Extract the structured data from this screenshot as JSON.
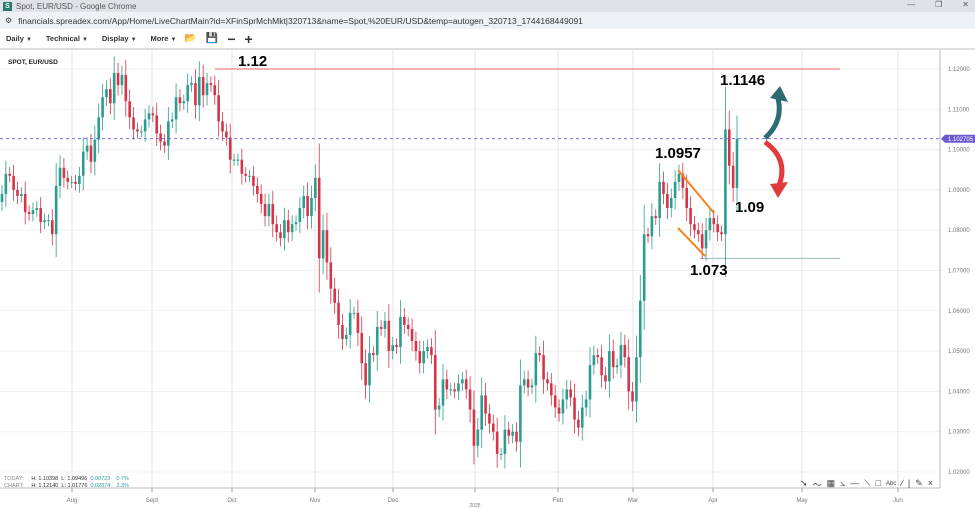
{
  "window": {
    "title": "Spot, EUR/USD - Google Chrome",
    "url": "financials.spreadex.com/App/Home/LiveChartMain?id=XFinSprMchMkt|320713&name=Spot,%20EUR/USD&temp=autogen_320713_1744168449091"
  },
  "toolbar": {
    "daily": "Daily",
    "technical": "Technical",
    "display": "Display",
    "more": "More"
  },
  "symbol": "SPOT, EUR/USD",
  "stats": {
    "today": {
      "label": "TODAY:",
      "h": "H: 1.10398",
      "l": "L: 1.09496",
      "chg": "0.00723",
      "pct": "0.7%"
    },
    "chart": {
      "label": "CHART:",
      "h": "H: 1.12140",
      "l": "L: 1.01776",
      "chg": "0.02374",
      "pct": "2.3%"
    }
  },
  "annotations": {
    "a112": "1.12",
    "a11146": "1.1146",
    "a10957": "1.0957",
    "a109": "1.09",
    "a1073": "1.073"
  },
  "colors": {
    "up": "#2a9d8f",
    "down": "#d63447",
    "price_line": "#6a5acd",
    "resistance": "#f08080",
    "support": "#9fb8b8",
    "channel": "#f5841f",
    "arrow_up": "#2f6b74",
    "arrow_down": "#e23b3b"
  },
  "chart_data": {
    "type": "candlestick",
    "instrument": "SPOT, EUR/USD",
    "interval": "Daily",
    "ylim": [
      1.02,
      1.12
    ],
    "y_ticks": [
      "1.12000",
      "1.11000",
      "1.10000",
      "1.09000",
      "1.08000",
      "1.07000",
      "1.06000",
      "1.05000",
      "1.04000",
      "1.03000",
      "1.02000"
    ],
    "x_ticks": [
      "Aug",
      "Sept",
      "Oct",
      "Nov",
      "Dec",
      "2025",
      "Feb",
      "Mar",
      "Apr",
      "May",
      "Jun"
    ],
    "current_price": "1.102705",
    "levels": {
      "resistance": 1.12,
      "support": 1.073
    },
    "closes": [
      1.089,
      1.094,
      1.0935,
      1.09,
      1.0885,
      1.089,
      1.0845,
      1.084,
      1.085,
      1.0855,
      1.082,
      1.0825,
      1.0825,
      1.079,
      1.091,
      1.0955,
      1.093,
      1.092,
      1.092,
      1.0915,
      1.0935,
      1.0995,
      1.101,
      1.097,
      1.1025,
      1.108,
      1.113,
      1.115,
      1.1115,
      1.119,
      1.116,
      1.1185,
      1.112,
      1.108,
      1.105,
      1.1045,
      1.1045,
      1.1075,
      1.109,
      1.1085,
      1.104,
      1.102,
      1.101,
      1.107,
      1.1075,
      1.113,
      1.1115,
      1.112,
      1.116,
      1.1165,
      1.111,
      1.118,
      1.1135,
      1.1165,
      1.116,
      1.1135,
      1.107,
      1.1045,
      1.103,
      1.0975,
      1.0975,
      1.0975,
      1.094,
      1.0935,
      1.0935,
      1.091,
      1.089,
      1.0865,
      1.0835,
      1.0865,
      1.0815,
      1.0795,
      1.078,
      1.0825,
      1.0795,
      1.0815,
      1.082,
      1.0855,
      1.0885,
      1.0835,
      1.088,
      1.093,
      1.073,
      1.08,
      1.072,
      1.0655,
      1.062,
      1.0565,
      1.053,
      1.054,
      1.0595,
      1.0595,
      1.0545,
      1.047,
      1.0415,
      1.0495,
      1.049,
      1.056,
      1.0555,
      1.0575,
      1.05,
      1.0515,
      1.051,
      1.0585,
      1.0565,
      1.0555,
      1.0525,
      1.05,
      1.047,
      1.05,
      1.051,
      1.049,
      1.0355,
      1.0365,
      1.043,
      1.0405,
      1.0405,
      1.04,
      1.042,
      1.043,
      1.0405,
      1.0355,
      1.0265,
      1.0305,
      1.039,
      1.0345,
      1.032,
      1.03,
      1.0245,
      1.0245,
      1.0305,
      1.029,
      1.03,
      1.0275,
      1.0415,
      1.043,
      1.041,
      1.0415,
      1.0495,
      1.049,
      1.043,
      1.042,
      1.039,
      1.036,
      1.0345,
      1.038,
      1.0405,
      1.0385,
      1.033,
      1.031,
      1.036,
      1.038,
      1.0465,
      1.049,
      1.0485,
      1.044,
      1.0425,
      1.05,
      1.046,
      1.0465,
      1.0515,
      1.0485,
      1.04,
      1.0375,
      1.0485,
      1.0625,
      1.079,
      1.0785,
      1.0835,
      1.083,
      1.092,
      1.089,
      1.0855,
      1.088,
      1.092,
      1.094,
      1.0905,
      1.0855,
      1.0815,
      1.08,
      1.079,
      1.0755,
      1.08,
      1.083,
      1.0815,
      1.0795,
      1.079,
      1.105,
      1.096,
      1.0905,
      1.1027
    ]
  }
}
